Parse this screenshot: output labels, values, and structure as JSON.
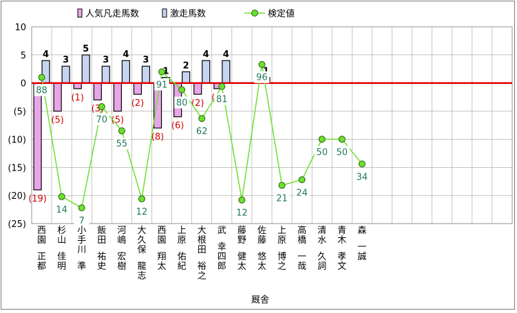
{
  "chart_data": {
    "type": "bar",
    "legend": [
      {
        "label": "人気凡走馬数",
        "marker": "bar-pink"
      },
      {
        "label": "激走馬数",
        "marker": "bar-blue"
      },
      {
        "label": "検定値",
        "marker": "line-green"
      }
    ],
    "legend_position": "top",
    "xlabel": "厩舎",
    "ylim": [
      -25,
      10
    ],
    "yticks": [
      10,
      5,
      0,
      -5,
      -10,
      -15,
      -20,
      -25
    ],
    "ytick_labels": [
      "10",
      "5",
      "0",
      "(5)",
      "(10)",
      "(15)",
      "(20)",
      "(25)"
    ],
    "grid": true,
    "categories": [
      "西園　正都",
      "杉山　佳明",
      "小手川　準",
      "飯田　祐史",
      "河嶋　宏樹",
      "大久保　龍志",
      "西園　翔太",
      "上原　佑紀",
      "大根田　裕之",
      "武　幸四郎",
      "藤野　健太",
      "佐藤　悠太",
      "上原　博之",
      "高橋　一哉",
      "清水　久詞",
      "青木　孝文",
      "森　一誠"
    ],
    "series": [
      {
        "name": "人気凡走馬数",
        "values": [
          -19,
          -5,
          -1,
          -3,
          -5,
          -2,
          -8,
          -6,
          -2,
          -1,
          null,
          null,
          null,
          null,
          null,
          null,
          null
        ],
        "labels": [
          "(19)",
          "(5)",
          "(1)",
          "(3)",
          "(5)",
          "(2)",
          "(8)",
          "(6)",
          "(2)",
          "(1)",
          "",
          "",
          "",
          "",
          "",
          "",
          ""
        ]
      },
      {
        "name": "激走馬数",
        "values": [
          4,
          3,
          5,
          3,
          4,
          3,
          1,
          2,
          4,
          4,
          null,
          1,
          null,
          null,
          null,
          null,
          null
        ],
        "labels": [
          "4",
          "3",
          "5",
          "3",
          "4",
          "3",
          "1",
          "2",
          "4",
          "4",
          "",
          "1",
          "",
          "",
          "",
          "",
          ""
        ]
      },
      {
        "name": "検定値",
        "values": [
          1,
          -20.2,
          -22.2,
          -4.2,
          -8.5,
          -20.6,
          2,
          -1.2,
          -6.3,
          -0.6,
          -20.8,
          3.3,
          -18.2,
          -17.2,
          -10,
          -10,
          -14.4
        ],
        "labels": [
          "88",
          "14",
          "7",
          "70",
          "55",
          "12",
          "91",
          "80",
          "62",
          "81",
          "12",
          "96",
          "21",
          "24",
          "50",
          "50",
          "34"
        ]
      }
    ],
    "colors": {
      "pink_bar": "#e8a6e8",
      "blue_bar": "#c7d4f2",
      "line": "#6be02e",
      "marker": "#6be02e",
      "zero_line": "#e00000",
      "negative_label": "#d40000",
      "green_label": "#1f7a5c",
      "grid": "#a0a0a0"
    }
  }
}
